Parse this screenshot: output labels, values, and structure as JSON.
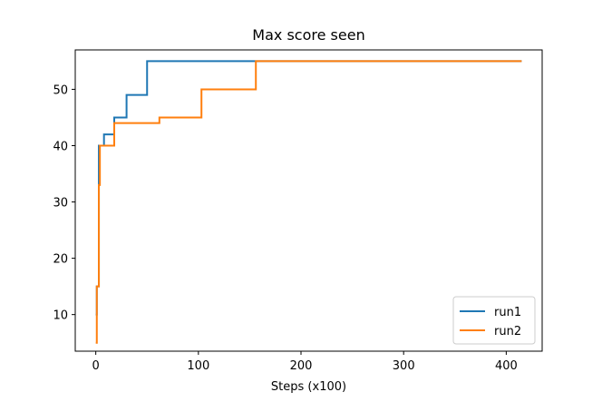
{
  "chart_data": {
    "type": "line",
    "title": "Max score seen",
    "xlabel": "Steps (x100)",
    "ylabel": "",
    "xlim": [
      -20,
      435
    ],
    "ylim": [
      3.5,
      57
    ],
    "xticks": [
      0,
      100,
      200,
      300,
      400
    ],
    "yticks": [
      10,
      20,
      30,
      40,
      50
    ],
    "grid": false,
    "legend_position": "bottom-right",
    "series": [
      {
        "name": "run1",
        "color": "#1f77b4",
        "x": [
          0,
          1,
          1,
          3,
          3,
          8,
          8,
          18,
          18,
          30,
          30,
          50,
          50,
          415
        ],
        "y": [
          10,
          10,
          15,
          15,
          40,
          40,
          42,
          42,
          45,
          45,
          49,
          49,
          55,
          55
        ]
      },
      {
        "name": "run2",
        "color": "#ff7f0e",
        "x": [
          0,
          1,
          1,
          3,
          3,
          4,
          4,
          18,
          18,
          62,
          62,
          103,
          103,
          156,
          156,
          415
        ],
        "y": [
          5,
          5,
          15,
          15,
          33,
          33,
          40,
          40,
          44,
          44,
          45,
          45,
          50,
          50,
          55,
          55
        ]
      }
    ]
  }
}
